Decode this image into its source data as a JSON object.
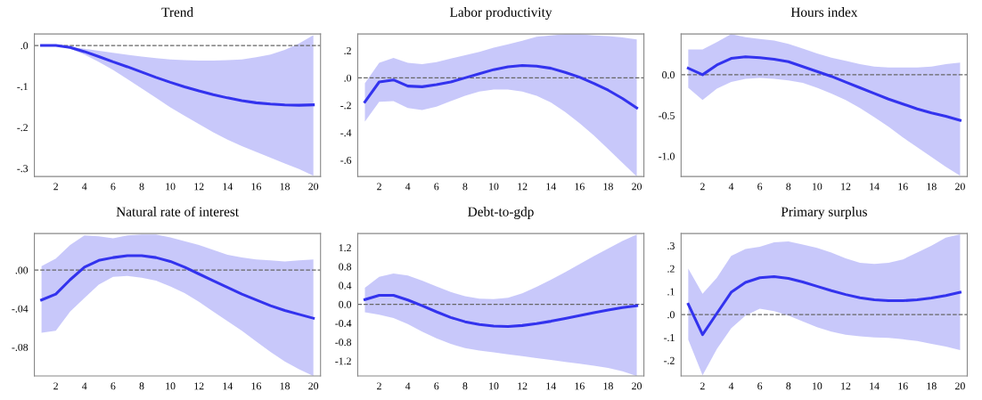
{
  "chart_data": [
    {
      "type": "line",
      "title": "Trend",
      "x": [
        1,
        2,
        3,
        4,
        5,
        6,
        7,
        8,
        9,
        10,
        11,
        12,
        13,
        14,
        15,
        16,
        17,
        18,
        19,
        20
      ],
      "xlim": [
        0.5,
        20.5
      ],
      "xticks": [
        2,
        4,
        6,
        8,
        10,
        12,
        14,
        16,
        18,
        20
      ],
      "ylim": [
        -0.32,
        0.028
      ],
      "yticks": [
        {
          "value": 0,
          "label": ".0"
        },
        {
          "value": -0.1,
          "label": "-.1"
        },
        {
          "value": -0.2,
          "label": "-.2"
        },
        {
          "value": -0.3,
          "label": "-.3"
        }
      ],
      "grid": false,
      "ref_lines": [
        {
          "axis": "y",
          "value": 0,
          "color": "#666666",
          "line_style": "dashed"
        }
      ],
      "series": [
        {
          "color": "#3333ee",
          "values": [
            0,
            0,
            -0.005,
            -0.015,
            -0.027,
            -0.04,
            -0.052,
            -0.065,
            -0.078,
            -0.09,
            -0.101,
            -0.111,
            -0.12,
            -0.128,
            -0.135,
            -0.14,
            -0.143,
            -0.145,
            -0.146,
            -0.145
          ],
          "upper": [
            0,
            0,
            -0.003,
            -0.008,
            -0.013,
            -0.018,
            -0.023,
            -0.027,
            -0.031,
            -0.034,
            -0.036,
            -0.037,
            -0.037,
            -0.036,
            -0.034,
            -0.029,
            -0.022,
            -0.011,
            0.005,
            0.025
          ],
          "lower": [
            0,
            0,
            -0.008,
            -0.022,
            -0.04,
            -0.06,
            -0.082,
            -0.105,
            -0.128,
            -0.151,
            -0.172,
            -0.192,
            -0.212,
            -0.23,
            -0.246,
            -0.26,
            -0.274,
            -0.288,
            -0.302,
            -0.318
          ]
        }
      ]
    },
    {
      "type": "line",
      "title": "Labor productivity",
      "x": [
        1,
        2,
        3,
        4,
        5,
        6,
        7,
        8,
        9,
        10,
        11,
        12,
        13,
        14,
        15,
        16,
        17,
        18,
        19,
        20
      ],
      "xlim": [
        0.5,
        20.5
      ],
      "xticks": [
        2,
        4,
        6,
        8,
        10,
        12,
        14,
        16,
        18,
        20
      ],
      "ylim": [
        -0.72,
        0.32
      ],
      "yticks": [
        {
          "value": 0.2,
          "label": ".2"
        },
        {
          "value": 0,
          "label": ".0"
        },
        {
          "value": -0.2,
          "label": "-.2"
        },
        {
          "value": -0.4,
          "label": "-.4"
        },
        {
          "value": -0.6,
          "label": "-.6"
        }
      ],
      "grid": false,
      "ref_lines": [
        {
          "axis": "y",
          "value": 0,
          "color": "#666666",
          "line_style": "dashed"
        }
      ],
      "series": [
        {
          "color": "#3333ee",
          "values": [
            -0.175,
            -0.03,
            -0.015,
            -0.06,
            -0.065,
            -0.05,
            -0.03,
            0.0,
            0.03,
            0.06,
            0.08,
            0.09,
            0.085,
            0.07,
            0.04,
            0.005,
            -0.04,
            -0.09,
            -0.15,
            -0.22
          ],
          "upper": [
            -0.04,
            0.11,
            0.145,
            0.11,
            0.1,
            0.115,
            0.14,
            0.165,
            0.19,
            0.22,
            0.245,
            0.27,
            0.3,
            0.31,
            0.32,
            0.32,
            0.31,
            0.305,
            0.295,
            0.28
          ],
          "lower": [
            -0.32,
            -0.175,
            -0.17,
            -0.22,
            -0.235,
            -0.21,
            -0.17,
            -0.13,
            -0.1,
            -0.085,
            -0.085,
            -0.1,
            -0.13,
            -0.18,
            -0.25,
            -0.33,
            -0.42,
            -0.52,
            -0.62,
            -0.72
          ]
        }
      ]
    },
    {
      "type": "line",
      "title": "Hours index",
      "x": [
        1,
        2,
        3,
        4,
        5,
        6,
        7,
        8,
        9,
        10,
        11,
        12,
        13,
        14,
        15,
        16,
        17,
        18,
        19,
        20
      ],
      "xlim": [
        0.5,
        20.5
      ],
      "xticks": [
        2,
        4,
        6,
        8,
        10,
        12,
        14,
        16,
        18,
        20
      ],
      "ylim": [
        -1.25,
        0.5
      ],
      "yticks": [
        {
          "value": 0,
          "label": "0.0"
        },
        {
          "value": -0.5,
          "label": "-0.5"
        },
        {
          "value": -1.0,
          "label": "-1.0"
        }
      ],
      "grid": false,
      "ref_lines": [
        {
          "axis": "y",
          "value": 0,
          "color": "#666666",
          "line_style": "dashed"
        }
      ],
      "series": [
        {
          "color": "#3333ee",
          "values": [
            0.08,
            0.0,
            0.12,
            0.2,
            0.22,
            0.21,
            0.19,
            0.16,
            0.1,
            0.04,
            -0.02,
            -0.09,
            -0.16,
            -0.23,
            -0.3,
            -0.36,
            -0.42,
            -0.47,
            -0.51,
            -0.56
          ],
          "upper": [
            0.31,
            0.31,
            0.4,
            0.5,
            0.46,
            0.44,
            0.42,
            0.38,
            0.32,
            0.26,
            0.21,
            0.17,
            0.13,
            0.1,
            0.09,
            0.09,
            0.09,
            0.1,
            0.13,
            0.15
          ],
          "lower": [
            -0.16,
            -0.31,
            -0.17,
            -0.09,
            -0.05,
            -0.04,
            -0.05,
            -0.07,
            -0.1,
            -0.16,
            -0.23,
            -0.31,
            -0.41,
            -0.52,
            -0.64,
            -0.77,
            -0.89,
            -1.01,
            -1.13,
            -1.24
          ]
        }
      ]
    },
    {
      "type": "line",
      "title": "Natural rate of interest",
      "x": [
        1,
        2,
        3,
        4,
        5,
        6,
        7,
        8,
        9,
        10,
        11,
        12,
        13,
        14,
        15,
        16,
        17,
        18,
        19,
        20
      ],
      "xlim": [
        0.5,
        20.5
      ],
      "xticks": [
        2,
        4,
        6,
        8,
        10,
        12,
        14,
        16,
        18,
        20
      ],
      "ylim": [
        -0.11,
        0.038
      ],
      "yticks": [
        {
          "value": 0,
          "label": ".00"
        },
        {
          "value": -0.04,
          "label": "-.04"
        },
        {
          "value": -0.08,
          "label": "-.08"
        }
      ],
      "grid": false,
      "ref_lines": [
        {
          "axis": "y",
          "value": 0,
          "color": "#666666",
          "line_style": "dashed"
        }
      ],
      "series": [
        {
          "color": "#3333ee",
          "values": [
            -0.031,
            -0.025,
            -0.01,
            0.003,
            0.01,
            0.013,
            0.015,
            0.015,
            0.013,
            0.009,
            0.003,
            -0.004,
            -0.011,
            -0.018,
            -0.025,
            -0.031,
            -0.037,
            -0.042,
            -0.046,
            -0.05
          ],
          "upper": [
            0.004,
            0.012,
            0.026,
            0.036,
            0.035,
            0.033,
            0.036,
            0.037,
            0.037,
            0.034,
            0.03,
            0.026,
            0.021,
            0.016,
            0.013,
            0.011,
            0.01,
            0.009,
            0.01,
            0.011
          ],
          "lower": [
            -0.065,
            -0.063,
            -0.043,
            -0.029,
            -0.015,
            -0.007,
            -0.006,
            -0.008,
            -0.011,
            -0.017,
            -0.024,
            -0.033,
            -0.043,
            -0.053,
            -0.063,
            -0.074,
            -0.085,
            -0.095,
            -0.103,
            -0.11
          ]
        }
      ]
    },
    {
      "type": "line",
      "title": "Debt-to-gdp",
      "x": [
        1,
        2,
        3,
        4,
        5,
        6,
        7,
        8,
        9,
        10,
        11,
        12,
        13,
        14,
        15,
        16,
        17,
        18,
        19,
        20
      ],
      "xlim": [
        0.5,
        20.5
      ],
      "xticks": [
        2,
        4,
        6,
        8,
        10,
        12,
        14,
        16,
        18,
        20
      ],
      "ylim": [
        -1.52,
        1.5
      ],
      "yticks": [
        {
          "value": 1.2,
          "label": "1.2"
        },
        {
          "value": 0.8,
          "label": "0.8"
        },
        {
          "value": 0.4,
          "label": "0.4"
        },
        {
          "value": 0,
          "label": "0.0"
        },
        {
          "value": -0.4,
          "label": "-0.4"
        },
        {
          "value": -0.8,
          "label": "-0.8"
        },
        {
          "value": -1.2,
          "label": "-1.2"
        }
      ],
      "grid": false,
      "ref_lines": [
        {
          "axis": "y",
          "value": 0,
          "color": "#666666",
          "line_style": "dashed"
        }
      ],
      "series": [
        {
          "color": "#3333ee",
          "values": [
            0.1,
            0.19,
            0.19,
            0.09,
            -0.03,
            -0.16,
            -0.28,
            -0.37,
            -0.43,
            -0.46,
            -0.47,
            -0.45,
            -0.41,
            -0.36,
            -0.3,
            -0.24,
            -0.18,
            -0.12,
            -0.07,
            -0.03
          ],
          "upper": [
            0.35,
            0.58,
            0.65,
            0.61,
            0.5,
            0.38,
            0.26,
            0.17,
            0.12,
            0.11,
            0.14,
            0.23,
            0.37,
            0.52,
            0.68,
            0.85,
            1.02,
            1.18,
            1.34,
            1.48
          ],
          "lower": [
            -0.17,
            -0.22,
            -0.29,
            -0.42,
            -0.58,
            -0.72,
            -0.84,
            -0.93,
            -0.98,
            -1.02,
            -1.06,
            -1.1,
            -1.14,
            -1.18,
            -1.22,
            -1.26,
            -1.3,
            -1.35,
            -1.42,
            -1.52
          ]
        }
      ]
    },
    {
      "type": "line",
      "title": "Primary surplus",
      "x": [
        1,
        2,
        3,
        4,
        5,
        6,
        7,
        8,
        9,
        10,
        11,
        12,
        13,
        14,
        15,
        16,
        17,
        18,
        19,
        20
      ],
      "xlim": [
        0.5,
        20.5
      ],
      "xticks": [
        2,
        4,
        6,
        8,
        10,
        12,
        14,
        16,
        18,
        20
      ],
      "ylim": [
        -0.268,
        0.353
      ],
      "yticks": [
        {
          "value": 0.3,
          "label": ".3"
        },
        {
          "value": 0.2,
          "label": ".2"
        },
        {
          "value": 0.1,
          "label": ".1"
        },
        {
          "value": 0,
          "label": ".0"
        },
        {
          "value": -0.1,
          "label": "-.1"
        },
        {
          "value": -0.2,
          "label": "-.2"
        }
      ],
      "grid": false,
      "ref_lines": [
        {
          "axis": "y",
          "value": 0,
          "color": "#666666",
          "line_style": "dashed"
        }
      ],
      "series": [
        {
          "color": "#3333ee",
          "values": [
            0.045,
            -0.088,
            0.005,
            0.097,
            0.14,
            0.16,
            0.165,
            0.157,
            0.142,
            0.123,
            0.104,
            0.087,
            0.073,
            0.064,
            0.06,
            0.06,
            0.064,
            0.072,
            0.083,
            0.097
          ],
          "upper": [
            0.2,
            0.09,
            0.16,
            0.255,
            0.285,
            0.295,
            0.315,
            0.318,
            0.305,
            0.29,
            0.27,
            0.245,
            0.225,
            0.22,
            0.225,
            0.24,
            0.27,
            0.3,
            0.335,
            0.35
          ],
          "lower": [
            -0.11,
            -0.265,
            -0.15,
            -0.06,
            -0.005,
            0.025,
            0.015,
            -0.005,
            -0.03,
            -0.055,
            -0.075,
            -0.088,
            -0.095,
            -0.1,
            -0.102,
            -0.108,
            -0.115,
            -0.128,
            -0.14,
            -0.155
          ]
        }
      ]
    }
  ]
}
